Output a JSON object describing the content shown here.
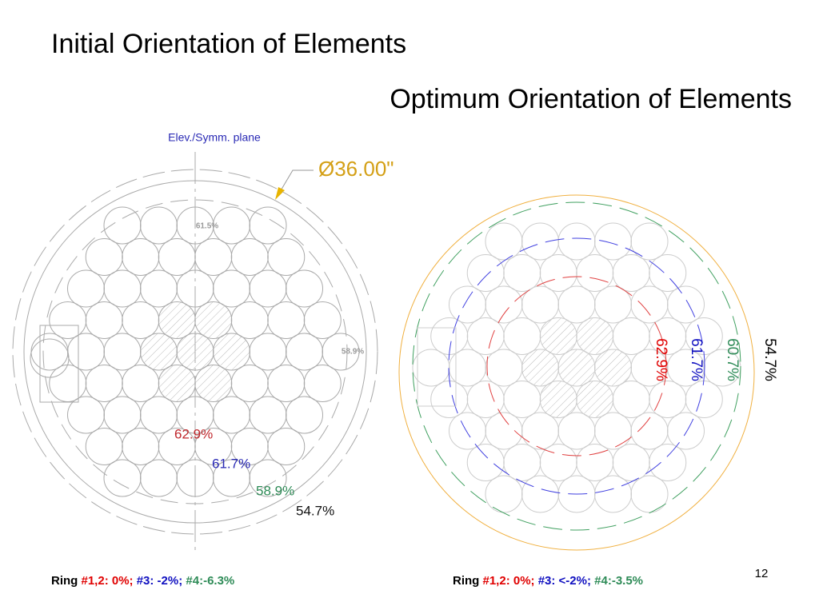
{
  "left": {
    "title": "Initial Orientation of Elements",
    "plane_label": "Elev./Symm. plane",
    "diameter_label": "Ø36.00\"",
    "small_labels": [
      "61.5%",
      "58.9%"
    ],
    "ring_labels": [
      {
        "text": "62.9%",
        "color": "#c0282d"
      },
      {
        "text": "61.7%",
        "color": "#2a2ab5"
      },
      {
        "text": "58.9%",
        "color": "#2e8b57"
      },
      {
        "text": "54.7%",
        "color": "#111111"
      }
    ],
    "caption": [
      {
        "text": "Ring ",
        "color": "#000000"
      },
      {
        "text": "#1,2: 0%; ",
        "color": "#e00000"
      },
      {
        "text": "#3: -2%; ",
        "color": "#1010c0"
      },
      {
        "text": "#4:-6.3%",
        "color": "#2e8b57"
      }
    ]
  },
  "right": {
    "title": "Optimum Orientation of Elements",
    "ring_labels": [
      {
        "text": "62.9%",
        "color": "#e00000"
      },
      {
        "text": "61.7%",
        "color": "#1010c0"
      },
      {
        "text": "60.7%",
        "color": "#2e8b57"
      },
      {
        "text": "54.7%",
        "color": "#000000"
      }
    ],
    "caption": [
      {
        "text": "Ring ",
        "color": "#000000"
      },
      {
        "text": "#1,2: 0%; ",
        "color": "#e00000"
      },
      {
        "text": "#3: <-2%; ",
        "color": "#1010c0"
      },
      {
        "text": "#4:-3.5%",
        "color": "#2e8b57"
      }
    ]
  },
  "page_number": "12"
}
